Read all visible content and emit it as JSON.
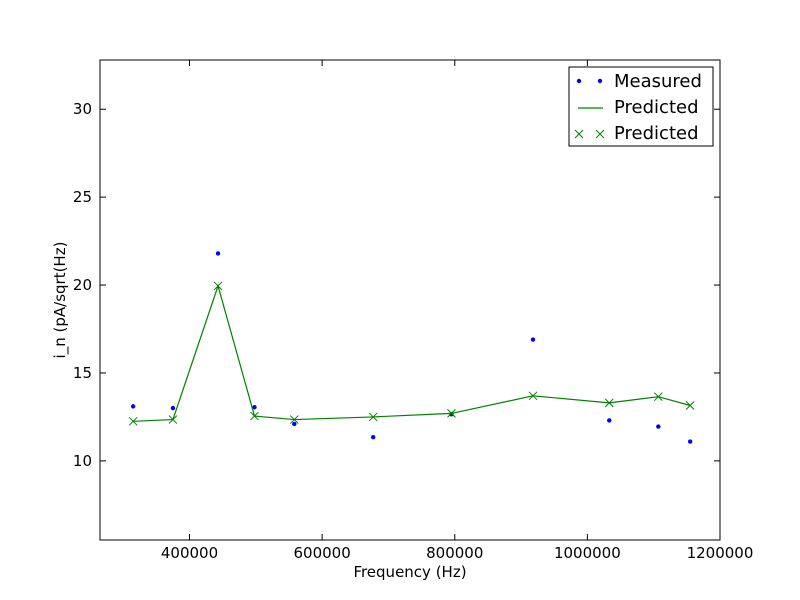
{
  "chart_data": {
    "type": "line",
    "xlabel": "Frequency (Hz)",
    "ylabel": "i_n (pA/sqrt(Hz)",
    "xlim": [
      265000,
      1200000
    ],
    "ylim": [
      5.5,
      32.8
    ],
    "x_ticks": [
      400000,
      600000,
      800000,
      1000000,
      1200000
    ],
    "x_tick_labels": [
      "400000",
      "600000",
      "800000",
      "1000000",
      "1200000"
    ],
    "y_ticks": [
      10,
      15,
      20,
      25,
      30
    ],
    "y_tick_labels": [
      "10",
      "15",
      "20",
      "25",
      "30"
    ],
    "grid": false,
    "legend_position": "top-right",
    "series": [
      {
        "name": "Measured",
        "style": "markers",
        "marker": "dot",
        "color": "#0000ff",
        "x": [
          315000,
          375000,
          443000,
          498000,
          558000,
          677000,
          795000,
          918000,
          1033000,
          1107000,
          1155000
        ],
        "y": [
          13.1,
          13.0,
          21.8,
          13.05,
          12.1,
          11.35,
          12.65,
          16.9,
          12.3,
          11.95,
          11.1
        ]
      },
      {
        "name": "Predicted",
        "style": "line",
        "color": "#008000",
        "x": [
          315000,
          375000,
          443000,
          498000,
          558000,
          677000,
          795000,
          918000,
          1033000,
          1107000,
          1155000
        ],
        "y": [
          12.25,
          12.35,
          19.95,
          12.55,
          12.35,
          12.5,
          12.7,
          13.7,
          13.3,
          13.65,
          13.15
        ]
      },
      {
        "name": "Predicted",
        "style": "markers",
        "marker": "x",
        "color": "#008000",
        "x": [
          315000,
          375000,
          443000,
          498000,
          558000,
          677000,
          795000,
          918000,
          1033000,
          1107000,
          1155000
        ],
        "y": [
          12.25,
          12.35,
          19.95,
          12.55,
          12.35,
          12.5,
          12.7,
          13.7,
          13.3,
          13.65,
          13.15
        ]
      }
    ]
  }
}
